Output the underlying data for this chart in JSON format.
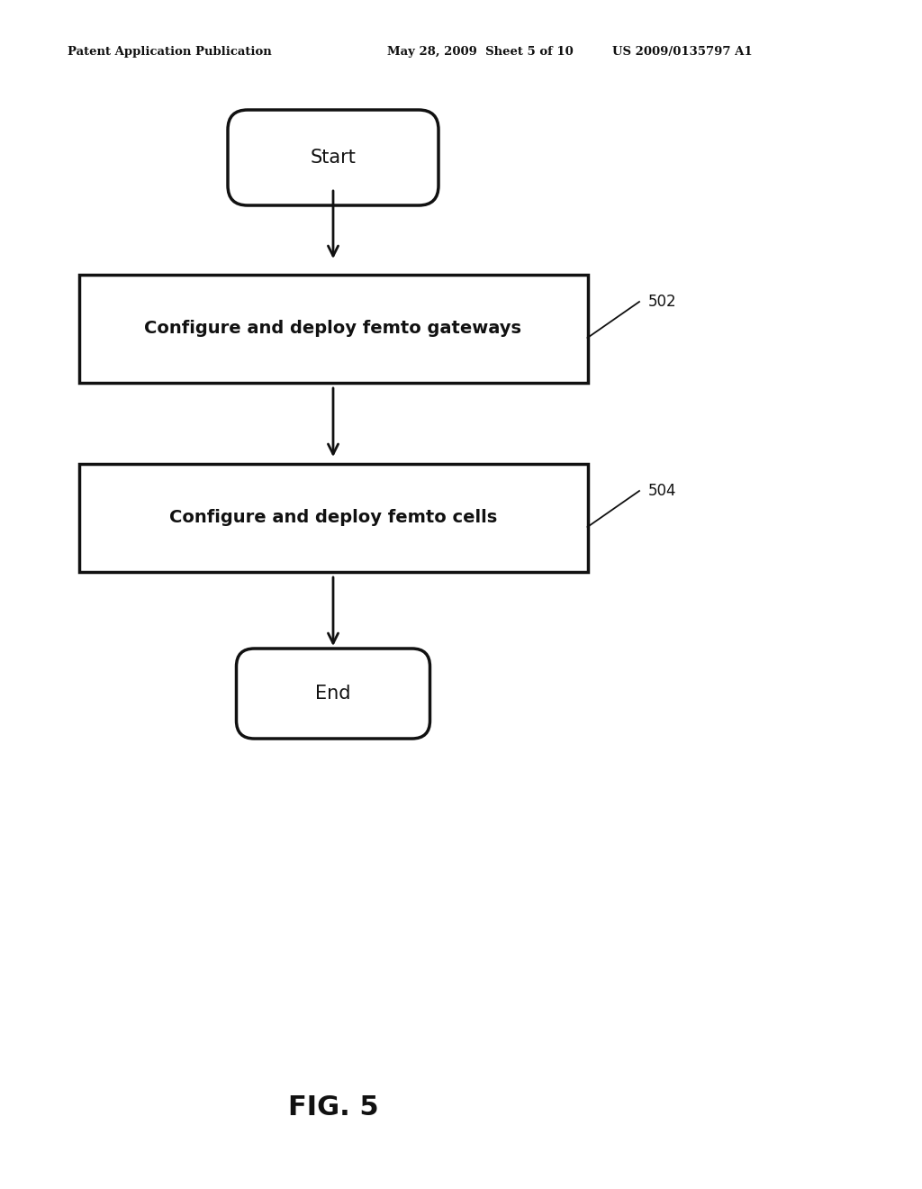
{
  "background_color": "#ffffff",
  "header_left": "Patent Application Publication",
  "header_mid": "May 28, 2009  Sheet 5 of 10",
  "header_right": "US 2009/0135797 A1",
  "header_fontsize": 9.5,
  "fig_label": "FIG. 5",
  "fig_label_fontsize": 22,
  "start_label": "Start",
  "end_label": "End",
  "box1_label": "Configure and deploy femto gateways",
  "box2_label": "Configure and deploy femto cells",
  "ref1": "502",
  "ref2": "504",
  "line_color": "#111111",
  "line_width": 2.0,
  "text_fontsize": 14,
  "ref_fontsize": 12,
  "terminal_fontsize": 15
}
